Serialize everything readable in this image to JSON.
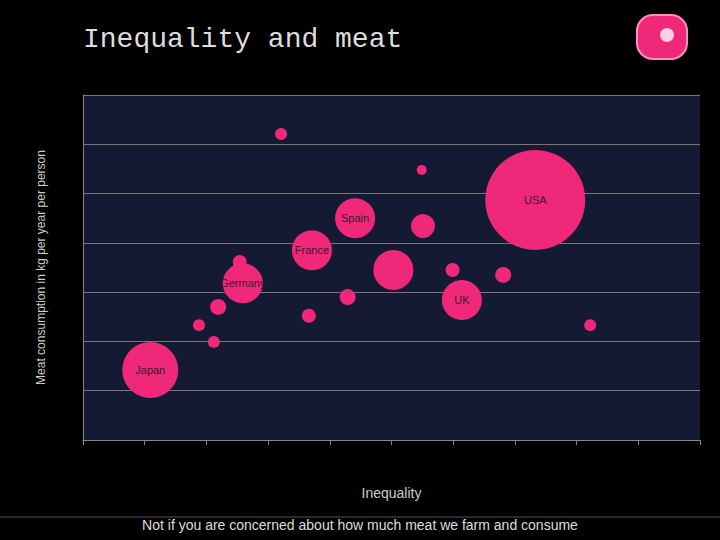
{
  "chart_data": {
    "type": "scatter",
    "title": "Inequality and meat",
    "x_label": "Inequality",
    "y_label": "Meat consumption in kg per year per person",
    "footnote": "Not if you are concerned about how much meat we farm and consume",
    "x": [
      3.21,
      5.49,
      7.33,
      4.41,
      5.51,
      3.71,
      2.54,
      5.03,
      5.99,
      6.81,
      2.59,
      6.14,
      4.29,
      2.19,
      3.66,
      1.88,
      8.22,
      2.12,
      1.09
    ],
    "values": [
      6.21,
      5.48,
      4.87,
      4.5,
      4.34,
      3.85,
      3.61,
      3.45,
      3.45,
      3.35,
      3.18,
      2.84,
      2.9,
      2.7,
      2.52,
      2.33,
      2.33,
      1.99,
      1.42
    ],
    "sizes": [
      6,
      5,
      50,
      20,
      12,
      20,
      7,
      20,
      7,
      8,
      20,
      20,
      8,
      8,
      7,
      6,
      6,
      6,
      28
    ],
    "labels": [
      null,
      null,
      "USA",
      "Spain",
      null,
      "France",
      null,
      null,
      null,
      null,
      "Germany",
      "UK",
      null,
      null,
      null,
      null,
      null,
      null,
      "Japan"
    ],
    "color": "#f0287a",
    "marker": "circle",
    "xlim": [
      0,
      10
    ],
    "xticks": [
      0,
      1,
      2,
      3,
      4,
      5,
      6,
      7,
      8,
      9,
      10
    ],
    "ylim": [
      0,
      7
    ],
    "yticks": [
      0,
      1,
      2,
      3,
      4,
      5,
      6,
      7
    ],
    "grid": true,
    "tick_labels": false
  }
}
